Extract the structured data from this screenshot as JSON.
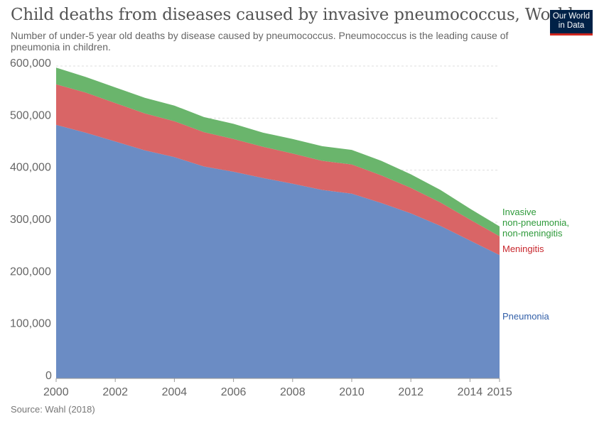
{
  "header": {
    "title": "Child deaths from diseases caused by invasive pneumococcus, World",
    "subtitle": "Number of under-5 year old deaths by disease caused by pneumococcus. Pneumococcus is the leading cause of pneumonia in children."
  },
  "logo": {
    "line1": "Our World",
    "line2": "in Data",
    "bg_color": "#002147",
    "accent_color": "#ce261e"
  },
  "footer": {
    "source": "Source: Wahl (2018)"
  },
  "chart_data": {
    "type": "area",
    "stacked": true,
    "title": "Child deaths from diseases caused by invasive pneumococcus, World",
    "xlim": [
      2000,
      2015
    ],
    "ylim": [
      0,
      600000
    ],
    "grid": true,
    "x": [
      2000,
      2001,
      2002,
      2003,
      2004,
      2005,
      2006,
      2007,
      2008,
      2009,
      2010,
      2011,
      2012,
      2013,
      2014,
      2015
    ],
    "x_ticks": [
      "2000",
      "2002",
      "2004",
      "2006",
      "2008",
      "2010",
      "2012",
      "2014",
      "2015"
    ],
    "y_ticks": [
      "0",
      "100,000",
      "200,000",
      "300,000",
      "400,000",
      "500,000",
      "600,000"
    ],
    "series": [
      {
        "name": "Pneumonia",
        "color": "#6b8cc4",
        "label_color": "#3360a9",
        "values": [
          487000,
          472000,
          455000,
          438000,
          425000,
          407000,
          397000,
          385000,
          374000,
          362000,
          355000,
          337000,
          317000,
          293000,
          265000,
          237000
        ]
      },
      {
        "name": "Meningitis",
        "color": "#d96566",
        "label_color": "#c8272d",
        "values": [
          78000,
          77000,
          74000,
          71000,
          69000,
          66000,
          63000,
          60000,
          58000,
          56000,
          56000,
          53000,
          49000,
          45000,
          40000,
          36000
        ]
      },
      {
        "name": "Invasive non-pneumonia, non-meningitis",
        "label_lines": [
          "Invasive",
          "non-pneumonia,",
          "non-meningitis"
        ],
        "color": "#6ab56c",
        "label_color": "#2e9a3a",
        "values": [
          32000,
          30000,
          30000,
          30000,
          30000,
          29000,
          29000,
          27000,
          28000,
          28000,
          28000,
          28000,
          26000,
          24000,
          21000,
          19000
        ]
      }
    ]
  }
}
